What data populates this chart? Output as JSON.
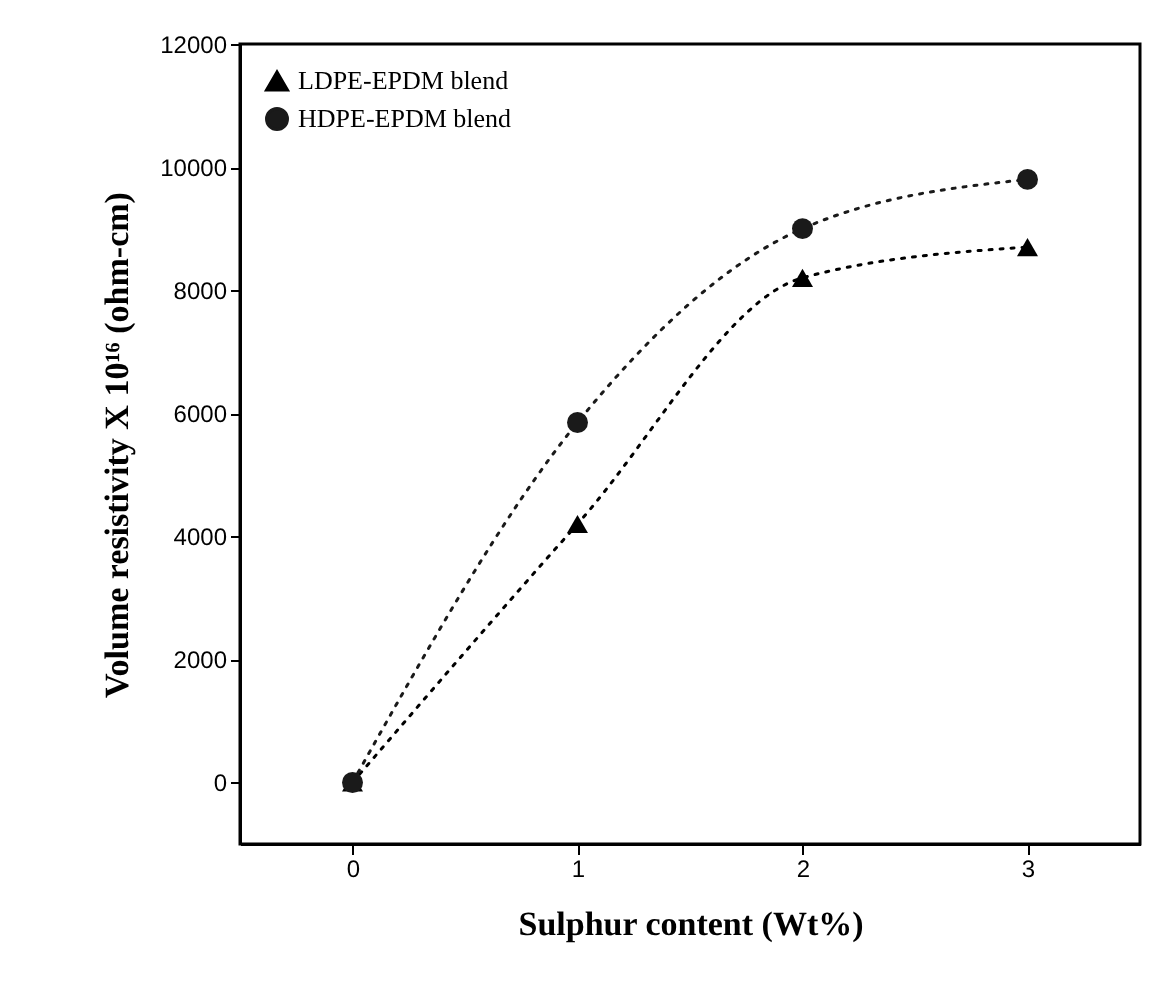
{
  "chart_data": {
    "type": "line",
    "xlabel": "Sulphur content (Wt%)",
    "ylabel": "Volume resistivity X 10¹⁶ (ohm-cm)",
    "x": [
      0,
      1,
      2,
      3
    ],
    "xlim": [
      -0.5,
      3.5
    ],
    "xticks": [
      0,
      1,
      2,
      3
    ],
    "ylim": [
      -1000,
      12000
    ],
    "yticks": [
      0,
      2000,
      4000,
      6000,
      8000,
      10000,
      12000
    ],
    "series": [
      {
        "name": "LDPE-EPDM blend",
        "color": "#000000",
        "marker": "triangle",
        "values": [
          0,
          4200,
          8200,
          8700
        ]
      },
      {
        "name": "HDPE-EPDM blend",
        "color": "#1a1a1a",
        "marker": "circle",
        "values": [
          0,
          5850,
          9000,
          9800
        ]
      }
    ],
    "line_style": "dotted",
    "legend": "top left",
    "grid": false
  }
}
